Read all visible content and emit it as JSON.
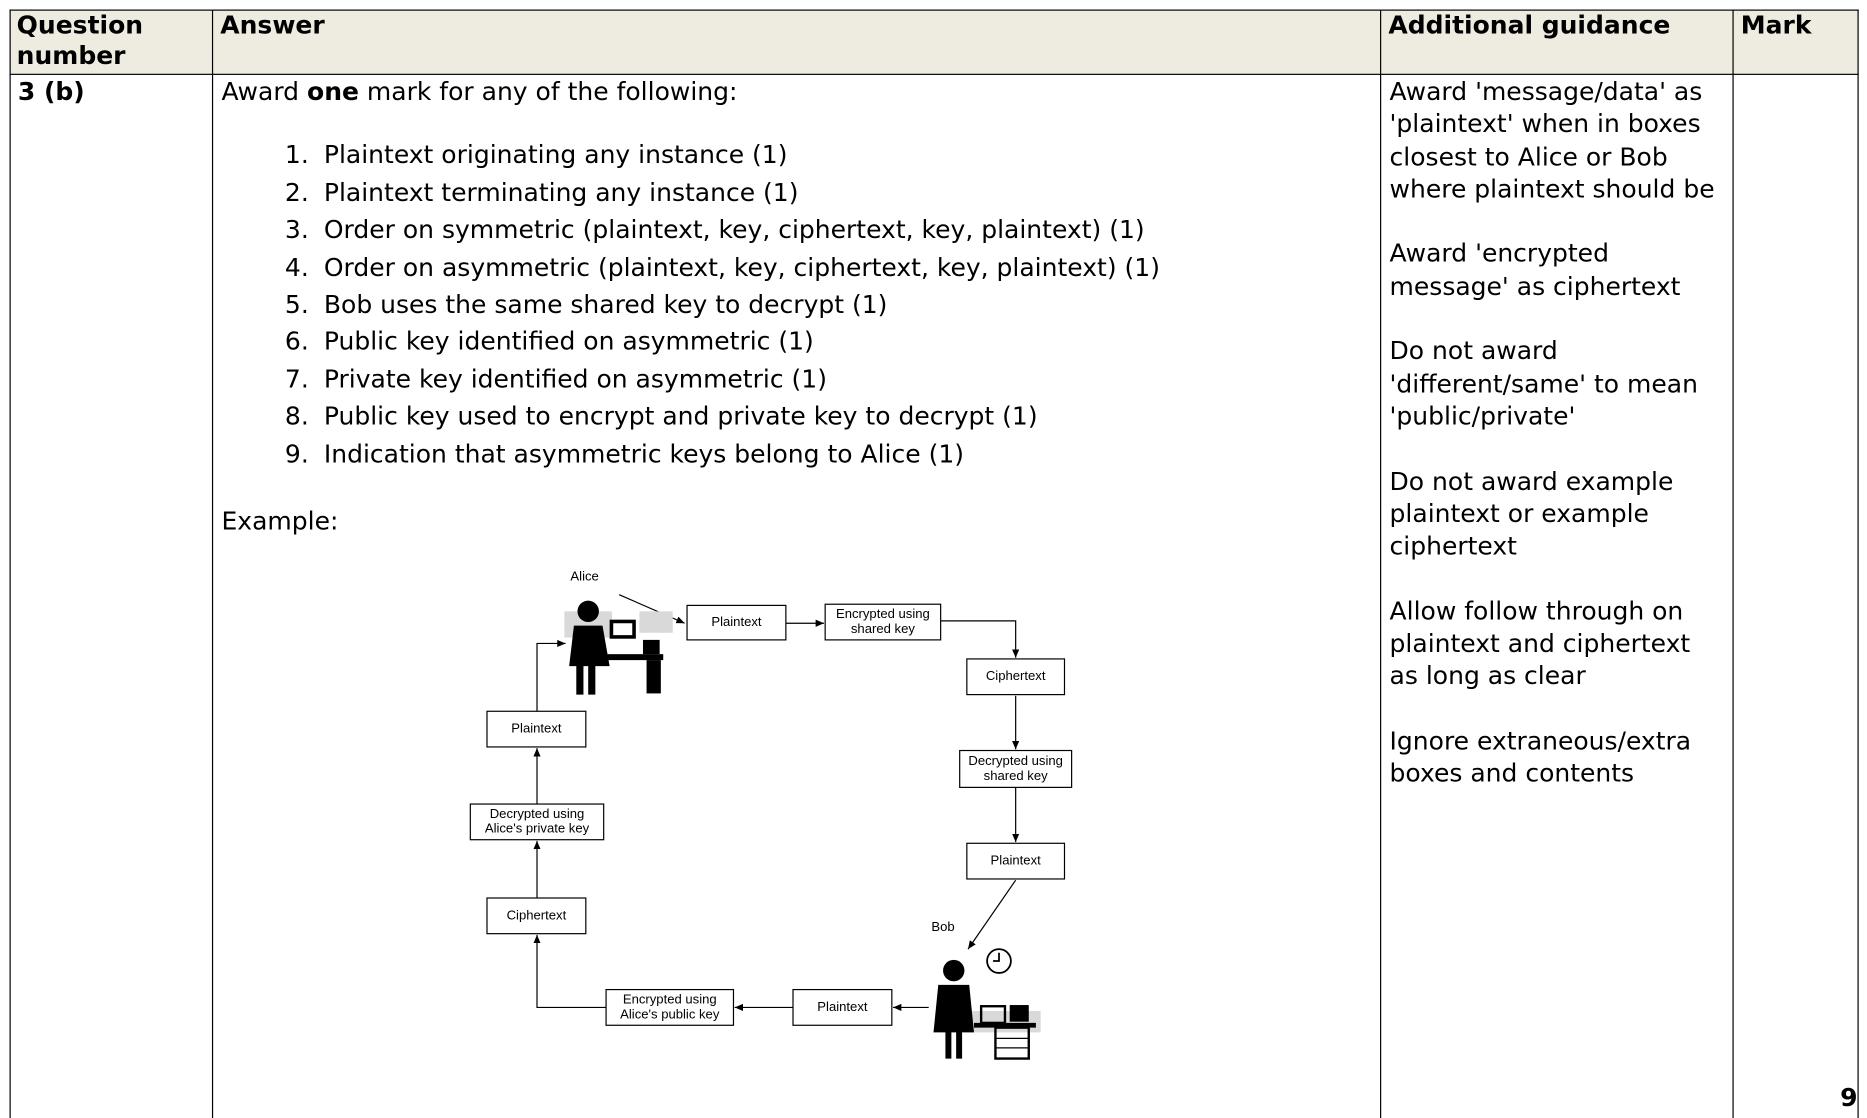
{
  "header": {
    "question_number": "Question number",
    "answer": "Answer",
    "additional_guidance": "Additional guidance",
    "mark": "Mark"
  },
  "row": {
    "question_number": "3 (b)",
    "intro": [
      "Award ",
      "one",
      " mark for any of the following:"
    ],
    "items": [
      "Plaintext originating any instance (1)",
      "Plaintext terminating any instance (1)",
      "Order on symmetric (plaintext, key, ciphertext, key, plaintext) (1)",
      "Order on asymmetric (plaintext, key, ciphertext, key, plaintext) (1)",
      "Bob uses the same shared key to decrypt (1)",
      "Public key identified on asymmetric (1)",
      "Private key identified on asymmetric (1)",
      "Public key used to encrypt and private key to decrypt (1)",
      "Indication that asymmetric keys belong to Alice (1)"
    ],
    "example": "Example:",
    "diagram": {
      "alice": "Alice",
      "bob": "Bob",
      "boxes": [
        [
          "Plaintext"
        ],
        [
          "Encrypted using",
          "shared key"
        ],
        [
          "Ciphertext"
        ],
        [
          "Decrypted using",
          "shared key"
        ],
        [
          "Plaintext"
        ],
        [
          "Plaintext"
        ],
        [
          "Encrypted using",
          "Alice's public key"
        ],
        [
          "Ciphertext"
        ],
        [
          "Decrypted using",
          "Alice's private key"
        ],
        [
          "Plaintext"
        ]
      ]
    },
    "guidance": [
      "Award 'message/data' as 'plaintext' when in boxes closest to Alice or Bob where plaintext should be",
      "Award 'encrypted message' as ciphertext",
      "Do not award 'different/same' to mean 'public/private'",
      "Do not award example plaintext or example ciphertext",
      "Allow follow through on plaintext and ciphertext as long as clear",
      "Ignore extraneous/extra boxes and contents"
    ],
    "mark": "9"
  }
}
